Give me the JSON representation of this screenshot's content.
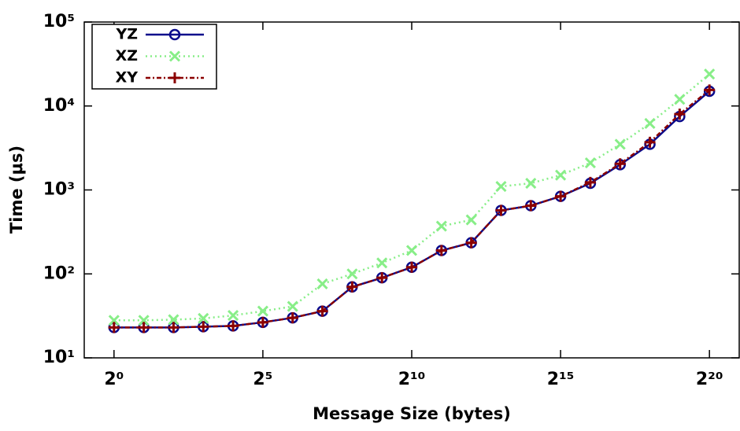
{
  "chart_data": {
    "type": "line",
    "x_label": "Message Size (bytes)",
    "y_label": "Time (μs)",
    "x": [
      1,
      2,
      4,
      8,
      16,
      32,
      64,
      128,
      256,
      512,
      1024,
      2048,
      4096,
      8192,
      16384,
      32768,
      65536,
      131072,
      262144,
      524288,
      1048576
    ],
    "xscale": "log",
    "yscale": "log",
    "xlim": [
      0.5,
      2097152
    ],
    "xticks": [
      {
        "value": 1,
        "label": "2⁰"
      },
      {
        "value": 32,
        "label": "2⁵"
      },
      {
        "value": 1024,
        "label": "2¹⁰"
      },
      {
        "value": 32768,
        "label": "2¹⁵"
      },
      {
        "value": 1048576,
        "label": "2²⁰"
      }
    ],
    "ylim": [
      10,
      100000
    ],
    "yticks": [
      {
        "value": 10,
        "label": "10¹"
      },
      {
        "value": 100,
        "label": "10²"
      },
      {
        "value": 1000,
        "label": "10³"
      },
      {
        "value": 10000,
        "label": "10⁴"
      },
      {
        "value": 100000,
        "label": "10⁵"
      }
    ],
    "grid": false,
    "legend": "top-left",
    "series": [
      {
        "name": "YZ",
        "color": "#0a0a8c",
        "marker": "circle",
        "line_style": "solid",
        "values": [
          23,
          23,
          23,
          23.5,
          24,
          26.5,
          30,
          36,
          70,
          90,
          120,
          190,
          235,
          570,
          650,
          840,
          1200,
          2000,
          3500,
          7500,
          15000
        ]
      },
      {
        "name": "XZ",
        "color": "#88ee88",
        "marker": "x",
        "line_style": "dotted",
        "values": [
          28,
          28,
          28.5,
          29.5,
          32,
          36,
          41,
          76,
          100,
          135,
          190,
          370,
          440,
          1100,
          1200,
          1500,
          2100,
          3500,
          6200,
          12000,
          24000
        ]
      },
      {
        "name": "XY",
        "color": "#8b0000",
        "marker": "plus",
        "line_style": "dashdot",
        "values": [
          23,
          23,
          23,
          23.5,
          24,
          26.5,
          30,
          36,
          70,
          90,
          120,
          190,
          235,
          570,
          650,
          840,
          1230,
          2050,
          3700,
          8000,
          15500
        ]
      }
    ]
  }
}
